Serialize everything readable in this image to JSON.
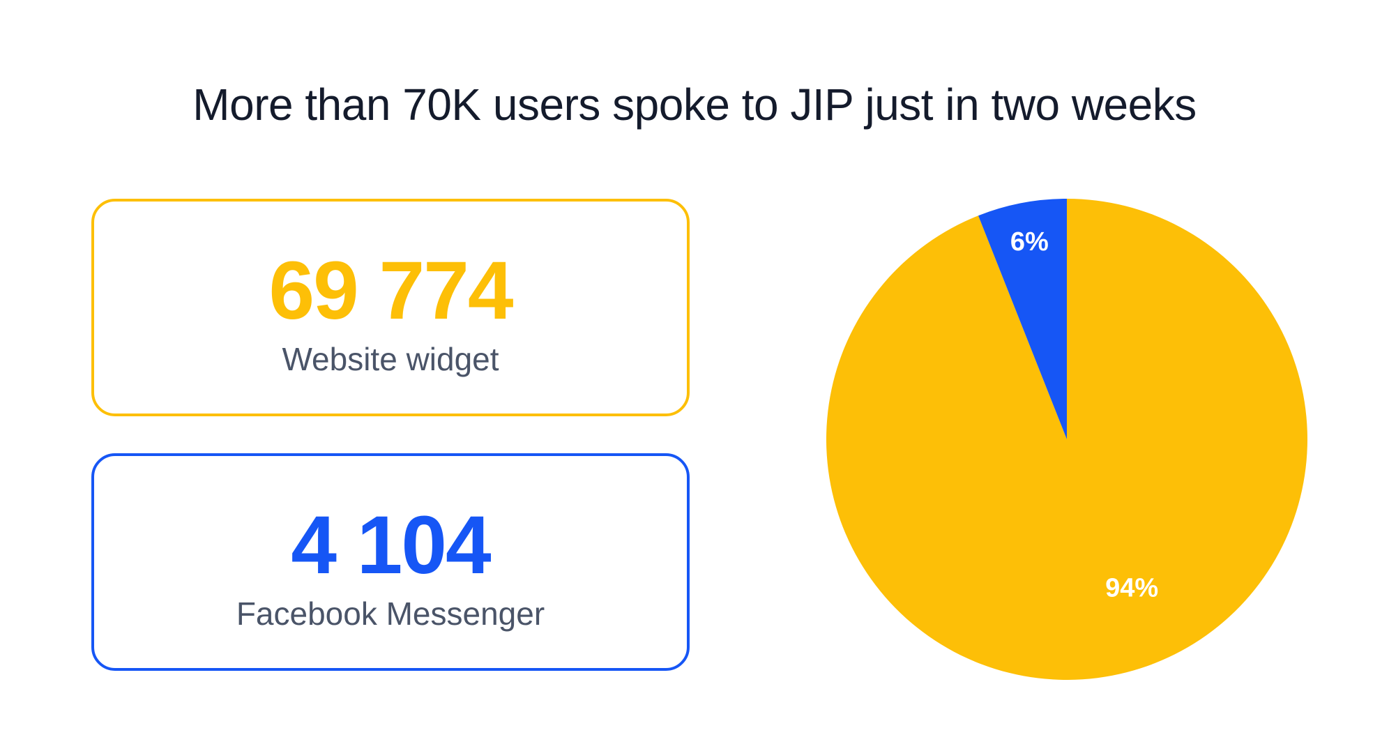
{
  "title": "More than 70K users spoke to JIP just in two weeks",
  "colors": {
    "website": "#fdbf07",
    "facebook": "#1656f5",
    "title": "#141b2c",
    "label": "#4a5468"
  },
  "cards": [
    {
      "value": "69 774",
      "label": "Website widget"
    },
    {
      "value": "4 104",
      "label": "Facebook Messenger"
    }
  ],
  "chart_data": {
    "type": "pie",
    "title": "More than 70K users spoke to JIP just in two weeks",
    "slices": [
      {
        "label": "Website widget",
        "value": 94,
        "display": "94%",
        "color": "#fdbf07"
      },
      {
        "label": "Facebook Messenger",
        "value": 6,
        "display": "6%",
        "color": "#1656f5"
      }
    ],
    "start_angle_deg": 0,
    "direction": "counterclockwise-from-top for small slice"
  }
}
